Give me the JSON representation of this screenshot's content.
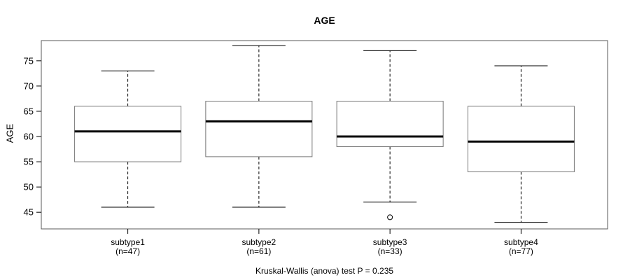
{
  "chart_data": {
    "type": "boxplot",
    "title": "AGE",
    "ylabel": "AGE",
    "xlabel": "",
    "footnote": "Kruskal-Wallis (anova) test P = 0.235",
    "yticks": [
      45,
      50,
      55,
      60,
      65,
      70,
      75
    ],
    "ylim": [
      41.7,
      79.0
    ],
    "grid": false,
    "legend": false,
    "groups": [
      {
        "label": "subtype1",
        "sublabel": "(n=47)",
        "n": 47,
        "whisker_low": 46,
        "q1": 55,
        "median": 61,
        "q3": 66,
        "whisker_high": 73,
        "outliers": []
      },
      {
        "label": "subtype2",
        "sublabel": "(n=61)",
        "n": 61,
        "whisker_low": 46,
        "q1": 56,
        "median": 63,
        "q3": 67,
        "whisker_high": 78,
        "outliers": []
      },
      {
        "label": "subtype3",
        "sublabel": "(n=33)",
        "n": 33,
        "whisker_low": 47,
        "q1": 58,
        "median": 60,
        "q3": 67,
        "whisker_high": 77,
        "outliers": [
          44
        ]
      },
      {
        "label": "subtype4",
        "sublabel": "(n=77)",
        "n": 77,
        "whisker_low": 43,
        "q1": 53,
        "median": 59,
        "q3": 66,
        "whisker_high": 74,
        "outliers": []
      }
    ],
    "colors": {
      "line": "#000000",
      "box_border": "#777777",
      "plot_border": "#5a5a5a",
      "box_fill": "#ffffff",
      "background": "#ffffff"
    }
  }
}
